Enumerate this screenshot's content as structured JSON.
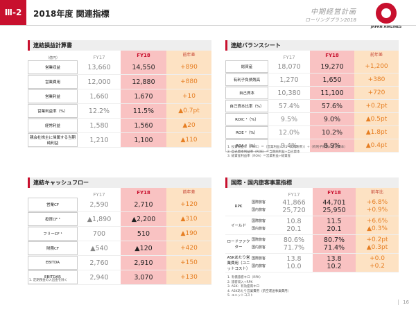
{
  "header": {
    "section": "Ⅲ-2",
    "title": "2018年度 関連指標",
    "plan_line1": "中期経営計画",
    "plan_line2": "ローリングプラン2018",
    "logo_text": "JAPAN AIRLINES"
  },
  "pl": {
    "title": "連結損益計算書",
    "unit": "（億円）",
    "col17": "FY17",
    "col18": "FY18",
    "colch": "前年差",
    "rows": [
      {
        "label": "営業収益",
        "v17": "13,660",
        "v18": "14,550",
        "diff": "+890"
      },
      {
        "label": "営業費用",
        "v17": "12,000",
        "v18": "12,880",
        "diff": "+880"
      },
      {
        "label": "営業利益",
        "v17": "1,660",
        "v18": "1,670",
        "diff": "+10"
      },
      {
        "label": "営業利益率（%）",
        "v17": "12.2%",
        "v18": "11.5%",
        "diff": "▲0.7pt"
      },
      {
        "label": "経常利益",
        "v17": "1,580",
        "v18": "1,560",
        "diff": "▲20"
      },
      {
        "label": "親会社株主に帰属する当期純利益",
        "v17": "1,210",
        "v18": "1,100",
        "diff": "▲110"
      }
    ]
  },
  "bs": {
    "title": "連結バランスシート",
    "col17": "FY17",
    "col18": "FY18",
    "colch": "前年差",
    "rows": [
      {
        "label": "総資産",
        "v17": "18,070",
        "v18": "19,270",
        "diff": "+1,200"
      },
      {
        "label": "有利子負債残高",
        "v17": "1,270",
        "v18": "1,650",
        "diff": "+380"
      },
      {
        "label": "自己資本",
        "v17": "10,380",
        "v18": "11,100",
        "diff": "+720"
      },
      {
        "label": "自己資本比率（%）",
        "v17": "57.4%",
        "v18": "57.6%",
        "diff": "+0.2pt"
      },
      {
        "label": "ROIC ¹（%）",
        "v17": "9.5%",
        "v18": "9.0%",
        "diff": "▲0.5pt"
      },
      {
        "label": "ROE ²（%）",
        "v17": "12.0%",
        "v18": "10.2%",
        "diff": "▲1.8pt"
      },
      {
        "label": "ROA ³（%）",
        "v17": "9.4%",
        "v18": "8.9%",
        "diff": "▲0.4pt"
      }
    ],
    "notes": [
      "1. 投資収益率（ROIC）＝（営業利益×（1−実効税率））÷（有利子負債＋自己資本）",
      "2. 自己資本利益率（ROE）＝当期純利益÷自己資本",
      "3. 総資産利益率（ROA）＝営業利益÷総資産"
    ]
  },
  "cf": {
    "title": "連結キャッシュフロー",
    "col17": "FY17",
    "col18": "FY18",
    "colch": "前年差",
    "rows": [
      {
        "label": "営業CF",
        "v17": "2,590",
        "v18": "2,710",
        "diff": "+120"
      },
      {
        "label": "投資CF ¹",
        "v17": "▲1,890",
        "v18": "▲2,200",
        "diff": "▲310"
      },
      {
        "label": "フリーCF ¹",
        "v17": "700",
        "v18": "510",
        "diff": "▲190"
      },
      {
        "label": "財務CF",
        "v17": "▲540",
        "v18": "▲120",
        "diff": "+420"
      },
      {
        "label": "EBITDA",
        "v17": "2,760",
        "v18": "2,910",
        "diff": "+150"
      },
      {
        "label": "EBITDAR",
        "v17": "2,940",
        "v18": "3,070",
        "diff": "+130"
      }
    ],
    "note": "1. 定期預金の入出金を除く"
  },
  "pax": {
    "title": "国際・国内旅客事業指標",
    "col17": "FY17",
    "col18": "FY18",
    "colch": "前年比",
    "sub_intl": "国際旅客",
    "sub_dom": "国内旅客",
    "rows": [
      {
        "label": "RPK",
        "v17a": "41,866",
        "v17b": "25,720",
        "v18a": "44,701",
        "v18b": "25,950",
        "da": "+6.8%",
        "db": "+0.9%"
      },
      {
        "label": "イールド",
        "v17a": "10.8",
        "v17b": "20.1",
        "v18a": "11.5",
        "v18b": "20.1",
        "da": "+6.6%",
        "db": "▲0.3%"
      },
      {
        "label": "ロードファクター",
        "v17a": "80.6%",
        "v17b": "71.7%",
        "v18a": "80.7%",
        "v18b": "71.4%",
        "da": "+0.2pt",
        "db": "▲0.3pt"
      },
      {
        "label": "ASKあたり営業費用（ユニットコスト）",
        "v17a": "13.8",
        "v17b": "10.0",
        "v18a": "13.8",
        "v18b": "10.2",
        "da": "+0.0",
        "db": "+0.2"
      }
    ],
    "notes": [
      "1. 有償旅客キロ（RPK）",
      "2. 旅客収入÷RPK",
      "3. ASK：有効座席キロ",
      "4. ASKあたり営業費用（航空運送事業費用）",
      "5. ユニットコスト"
    ]
  },
  "page_number": "16"
}
